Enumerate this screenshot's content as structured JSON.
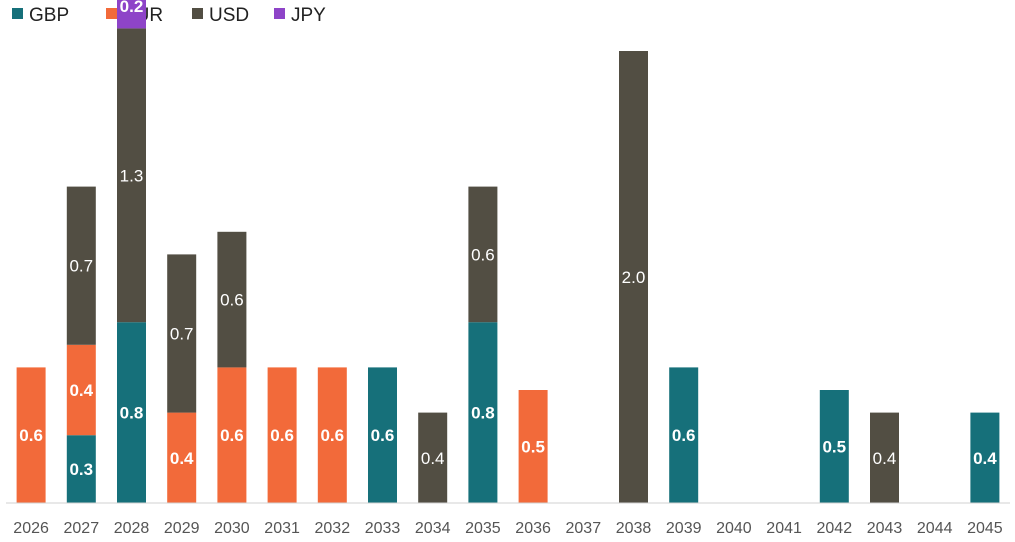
{
  "chart_data": {
    "type": "bar",
    "stacked": true,
    "categories": [
      "2026",
      "2027",
      "2028",
      "2029",
      "2030",
      "2031",
      "2032",
      "2033",
      "2034",
      "2035",
      "2036",
      "2037",
      "2038",
      "2039",
      "2040",
      "2041",
      "2042",
      "2043",
      "2044",
      "2045"
    ],
    "series": [
      {
        "name": "GBP",
        "color": "#16707a",
        "label_weight": "bold",
        "values": [
          0,
          0.3,
          0.8,
          0,
          0,
          0,
          0,
          0.6,
          0,
          0.8,
          0,
          0,
          0,
          0.6,
          0,
          0,
          0.5,
          0,
          0,
          0.4
        ],
        "labels": [
          "",
          "0.3",
          "0.8",
          "",
          "",
          "",
          "",
          "0.6",
          "",
          "0.8",
          "",
          "",
          "",
          "0.6",
          "",
          "",
          "0.5",
          "",
          "",
          "0.4"
        ]
      },
      {
        "name": "EUR",
        "color": "#f26a3a",
        "label_weight": "bold",
        "values": [
          0.6,
          0.4,
          0,
          0.4,
          0.6,
          0.6,
          0.6,
          0,
          0,
          0,
          0.5,
          0,
          0,
          0,
          0,
          0,
          0,
          0,
          0,
          0
        ],
        "labels": [
          "0.6",
          "0.4",
          "",
          "0.4",
          "0.6",
          "0.6",
          "0.6",
          "",
          "",
          "",
          "0.5",
          "",
          "",
          "",
          "",
          "",
          "",
          "",
          "",
          ""
        ]
      },
      {
        "name": "USD",
        "color": "#524e43",
        "label_weight": "normal",
        "values": [
          0,
          0.7,
          1.3,
          0.7,
          0.6,
          0,
          0,
          0,
          0.4,
          0.6,
          0,
          0,
          2.0,
          0,
          0,
          0,
          0,
          0.4,
          0,
          0
        ],
        "labels": [
          "",
          "0.7",
          "1.3",
          "0.7",
          "0.6",
          "",
          "",
          "",
          "0.4",
          "0.6",
          "",
          "",
          "2.0",
          "",
          "",
          "",
          "",
          "0.4",
          "",
          ""
        ]
      },
      {
        "name": "JPY",
        "color": "#8e44c8",
        "label_weight": "bold",
        "values": [
          0,
          0,
          0.2,
          0,
          0,
          0,
          0,
          0,
          0,
          0,
          0,
          0,
          0,
          0,
          0,
          0,
          0,
          0,
          0,
          0
        ],
        "labels": [
          "",
          "",
          "0.2",
          "",
          "",
          "",
          "",
          "",
          "",
          "",
          "",
          "",
          "",
          "",
          "",
          "",
          "",
          "",
          "",
          ""
        ]
      }
    ],
    "legend_position": "top-left",
    "grid": false,
    "ylim": [
      0,
      2.25
    ]
  }
}
